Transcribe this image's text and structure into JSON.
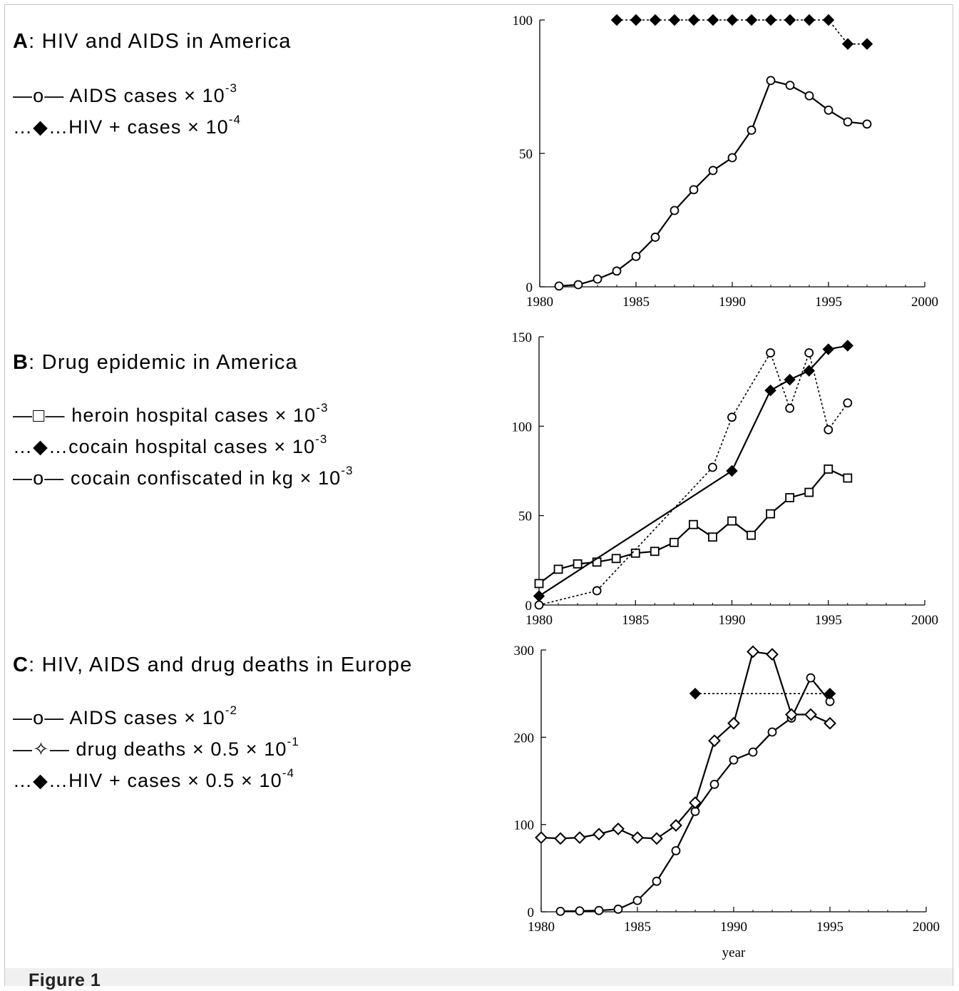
{
  "panels": [
    {
      "letter": "A",
      "title": ":  HIV and AIDS in America",
      "legend": [
        {
          "symbol": "—o—",
          "text": " AIDS cases  × 10",
          "exp": "-3"
        },
        {
          "symbol": "…◆…",
          "text": "HIV + cases × 10",
          "exp": "-4"
        }
      ]
    },
    {
      "letter": "B",
      "title": ":  Drug epidemic in America",
      "legend": [
        {
          "symbol": "—□—",
          "text": " heroin hospital cases × 10",
          "exp": "-3"
        },
        {
          "symbol": "…◆…",
          "text": "cocain hospital cases × 10",
          "exp": "-3"
        },
        {
          "symbol": "—o—",
          "text": " cocain confiscated in kg × 10",
          "exp": "-3"
        }
      ]
    },
    {
      "letter": "C",
      "title": ":  HIV, AIDS and drug deaths in Europe",
      "legend": [
        {
          "symbol": "—o—",
          "text": " AIDS cases × 10",
          "exp": "-2"
        },
        {
          "symbol": "—✧—",
          "text": "  drug deaths × 0.5 × 10",
          "exp": "-1"
        },
        {
          "symbol": "…◆…",
          "text": "HIV + cases × 0.5 × 10",
          "exp": "-4"
        }
      ]
    }
  ],
  "caption": "Figure 1",
  "chart_data": [
    {
      "type": "line",
      "xlim": [
        1980,
        2000
      ],
      "ylim": [
        0,
        100
      ],
      "xticks": [
        1980,
        1985,
        1990,
        1995,
        2000
      ],
      "yticks": [
        0,
        50,
        100
      ],
      "xlabel": "",
      "series": [
        {
          "marker": "circle-open",
          "line": "solid",
          "x": [
            1981,
            1982,
            1983,
            1984,
            1985,
            1986,
            1987,
            1988,
            1989,
            1990,
            1991,
            1992,
            1993,
            1994,
            1995,
            1996,
            1997
          ],
          "y": [
            0.3,
            0.8,
            2.9,
            5.9,
            11.4,
            18.6,
            28.6,
            36.4,
            43.6,
            48.4,
            58.7,
            77.3,
            75.5,
            71.6,
            66.2,
            61.8,
            61.0
          ]
        },
        {
          "marker": "diamond-filled",
          "line": "dotted",
          "x": [
            1984,
            1985,
            1986,
            1987,
            1988,
            1989,
            1990,
            1991,
            1992,
            1993,
            1994,
            1995,
            1996,
            1997
          ],
          "y": [
            100,
            100,
            100,
            100,
            100,
            100,
            100,
            100,
            100,
            100,
            100,
            100,
            91,
            91
          ]
        }
      ]
    },
    {
      "type": "line",
      "xlim": [
        1980,
        2000
      ],
      "ylim": [
        0,
        150
      ],
      "xticks": [
        1980,
        1985,
        1990,
        1995,
        2000
      ],
      "yticks": [
        0,
        50,
        100,
        150
      ],
      "xlabel": "",
      "series": [
        {
          "marker": "square-open",
          "line": "solid",
          "x": [
            1980,
            1981,
            1982,
            1983,
            1984,
            1985,
            1986,
            1987,
            1988,
            1989,
            1990,
            1991,
            1992,
            1993,
            1994,
            1995,
            1996
          ],
          "y": [
            12,
            20,
            23,
            24,
            26,
            29,
            30,
            35,
            45,
            38,
            47,
            39,
            51,
            60,
            63,
            76,
            71
          ]
        },
        {
          "marker": "diamond-filled",
          "line": "solid",
          "x": [
            1980,
            1990,
            1992,
            1993,
            1994,
            1995,
            1996
          ],
          "y": [
            5,
            75,
            120,
            126,
            131,
            143,
            145
          ]
        },
        {
          "marker": "circle-open",
          "line": "dotted",
          "x": [
            1980,
            1983,
            1989,
            1990,
            1992,
            1993,
            1994,
            1995,
            1996
          ],
          "y": [
            0,
            8,
            77,
            105,
            141,
            110,
            141,
            98,
            113
          ]
        }
      ]
    },
    {
      "type": "line",
      "xlim": [
        1980,
        2000
      ],
      "ylim": [
        0,
        300
      ],
      "xticks": [
        1980,
        1985,
        1990,
        1995,
        2000
      ],
      "yticks": [
        0,
        100,
        200,
        300
      ],
      "xlabel": "year",
      "series": [
        {
          "marker": "circle-open",
          "line": "solid",
          "x": [
            1981,
            1982,
            1983,
            1984,
            1985,
            1986,
            1987,
            1988,
            1989,
            1990,
            1991,
            1992,
            1993,
            1994,
            1995
          ],
          "y": [
            0.5,
            1,
            1.5,
            3,
            13,
            35,
            70,
            115,
            146,
            174,
            183,
            206,
            222,
            268,
            241
          ]
        },
        {
          "marker": "diamond-open",
          "line": "solid",
          "x": [
            1980,
            1981,
            1982,
            1983,
            1984,
            1985,
            1986,
            1987,
            1988,
            1989,
            1990,
            1991,
            1992,
            1993,
            1994,
            1995
          ],
          "y": [
            85,
            84,
            85,
            89,
            95,
            85,
            84,
            99,
            125,
            196,
            216,
            298,
            295,
            226,
            226,
            216
          ]
        },
        {
          "marker": "diamond-filled",
          "line": "dotted",
          "x": [
            1988,
            1995
          ],
          "y": [
            250,
            250
          ]
        }
      ]
    }
  ]
}
